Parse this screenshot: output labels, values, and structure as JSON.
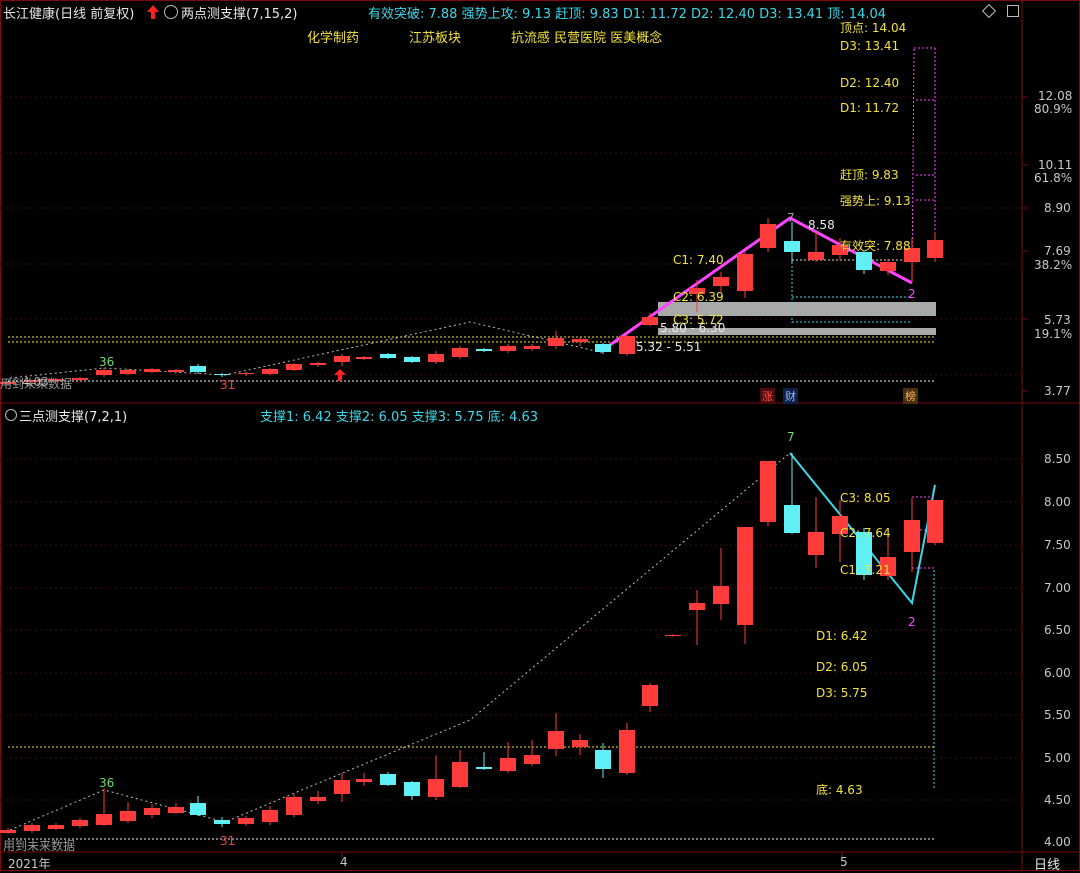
{
  "header": {
    "title": "长江健康(日线 前复权)",
    "indicator1_name": "两点测支撑(7,15,2)",
    "ind1_values": [
      "有效突破: 7.88",
      "强势上攻: 9.13",
      "赶顶: 9.83",
      "D1: 11.72",
      "D2: 12.40",
      "D3: 13.41",
      "顶: 14.04"
    ],
    "concepts": [
      "化学制药",
      "江苏板块",
      "抗流感 民营医院 医美概念"
    ]
  },
  "upper": {
    "yaxis": [
      "12.08",
      "80.9%",
      "10.11",
      "61.8%",
      "8.90",
      "7.69",
      "38.2%",
      "5.73",
      "19.1%",
      "3.77"
    ],
    "labels": {
      "top": "顶点: 14.04",
      "d3": "D3: 13.41",
      "d2": "D2: 12.40",
      "d1": "D1: 11.72",
      "ganding": "赶顶: 9.83",
      "qiangshi": "强势上: 9.13",
      "youxiao": "有效突: 7.88",
      "peak": "8.58",
      "peak_count": "7",
      "trough_count": "2",
      "c1": "C1: 7.40",
      "c2": "C2: 6.39",
      "c3": "C3: 5.72",
      "base1": "5.80 - 6.30",
      "base2": "5.32 - 5.51",
      "left_count": "36",
      "left_low": "31",
      "future": "用到未来数据",
      "future_val": "4.03"
    },
    "tags": [
      "涨",
      "财",
      "榜"
    ]
  },
  "lower": {
    "indicator_name": "三点测支撑(7,2,1)",
    "values": [
      "支撑1: 6.42",
      "支撑2: 6.05",
      "支撑3: 5.75",
      "底: 4.63"
    ],
    "yaxis": [
      "8.50",
      "8.00",
      "7.50",
      "7.00",
      "6.50",
      "6.00",
      "5.50",
      "5.00",
      "4.50",
      "4.00"
    ],
    "labels": {
      "c3": "C3: 8.05",
      "c2": "C2: 7.64",
      "c1": "C1: 7.21",
      "d1": "D1: 6.42",
      "d2": "D2: 6.05",
      "d3": "D3: 5.75",
      "di": "底: 4.63",
      "peak_count": "7",
      "trough_count": "2",
      "left_count": "36",
      "left_low": "31",
      "future": "用到未来数据"
    }
  },
  "xaxis": {
    "year": "2021年",
    "m4": "4",
    "m5": "5",
    "period": "日线"
  },
  "colors": {
    "up": "#ff3b3b",
    "down": "#5ef0f4",
    "yellow": "#f2e23a",
    "magenta": "#ff44ff",
    "cyan": "#3ad8e8"
  }
}
